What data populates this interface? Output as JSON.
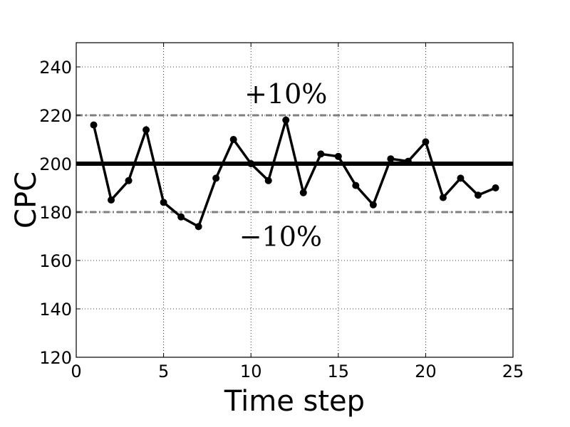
{
  "chart_data": {
    "type": "line",
    "title": "",
    "xlabel": "Time step",
    "ylabel": "CPC",
    "xlim": [
      0,
      25
    ],
    "ylim": [
      120,
      250
    ],
    "x_ticks": [
      0,
      5,
      10,
      15,
      20,
      25
    ],
    "y_ticks": [
      120,
      140,
      160,
      180,
      200,
      220,
      240
    ],
    "grid": true,
    "legend": "none",
    "series": [
      {
        "x": [
          1,
          2,
          3,
          4,
          5,
          6,
          7,
          8,
          9,
          10,
          11,
          12,
          13,
          14,
          15,
          16,
          17,
          18,
          19,
          20,
          21,
          22,
          23,
          24
        ],
        "values": [
          216,
          185,
          193,
          214,
          184,
          178,
          174,
          194,
          210,
          200,
          193,
          218,
          188,
          204,
          203,
          191,
          183,
          202,
          201,
          209,
          186,
          194,
          187,
          190
        ],
        "color": "#000000"
      }
    ],
    "reference_lines": [
      {
        "y": 200,
        "style": "solid",
        "color": "#000000"
      },
      {
        "y": 220,
        "style": "dashdot",
        "color": "#808080"
      },
      {
        "y": 180,
        "style": "dashdot",
        "color": "#808080"
      }
    ],
    "annotations": [
      {
        "text": "+10%",
        "x": 12.0,
        "y": 225
      },
      {
        "text": "−10%",
        "x": 11.7,
        "y": 166
      }
    ]
  }
}
